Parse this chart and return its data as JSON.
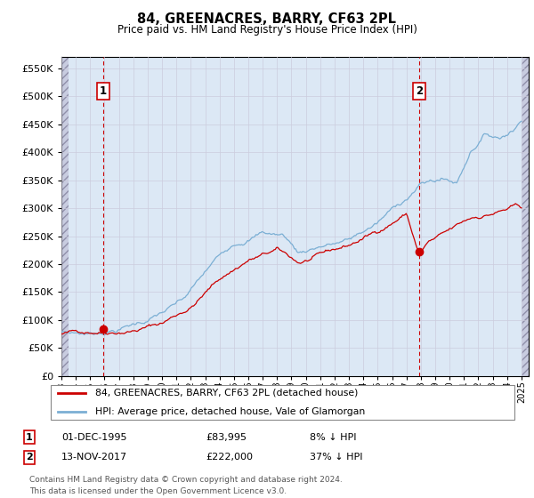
{
  "title": "84, GREENACRES, BARRY, CF63 2PL",
  "subtitle": "Price paid vs. HM Land Registry's House Price Index (HPI)",
  "ylabel_ticks": [
    "£0",
    "£50K",
    "£100K",
    "£150K",
    "£200K",
    "£250K",
    "£300K",
    "£350K",
    "£400K",
    "£450K",
    "£500K",
    "£550K"
  ],
  "ytick_values": [
    0,
    50000,
    100000,
    150000,
    200000,
    250000,
    300000,
    350000,
    400000,
    450000,
    500000,
    550000
  ],
  "ylim": [
    0,
    570000
  ],
  "xlim_start": 1993.0,
  "xlim_end": 2025.5,
  "annotation1": {
    "label": "1",
    "date": 1995.92,
    "price": 83995
  },
  "annotation2": {
    "label": "2",
    "date": 2017.87,
    "price": 222000
  },
  "legend_line1": "84, GREENACRES, BARRY, CF63 2PL (detached house)",
  "legend_line2": "HPI: Average price, detached house, Vale of Glamorgan",
  "footnote1": "Contains HM Land Registry data © Crown copyright and database right 2024.",
  "footnote2": "This data is licensed under the Open Government Licence v3.0.",
  "table_row1": [
    "1",
    "01-DEC-1995",
    "£83,995",
    "8% ↓ HPI"
  ],
  "table_row2": [
    "2",
    "13-NOV-2017",
    "£222,000",
    "37% ↓ HPI"
  ],
  "hpi_color": "#7bafd4",
  "price_color": "#cc0000",
  "grid_color": "#ccccdd",
  "plot_bg": "#dce8f5",
  "hatch_color": "#b0b8cc"
}
